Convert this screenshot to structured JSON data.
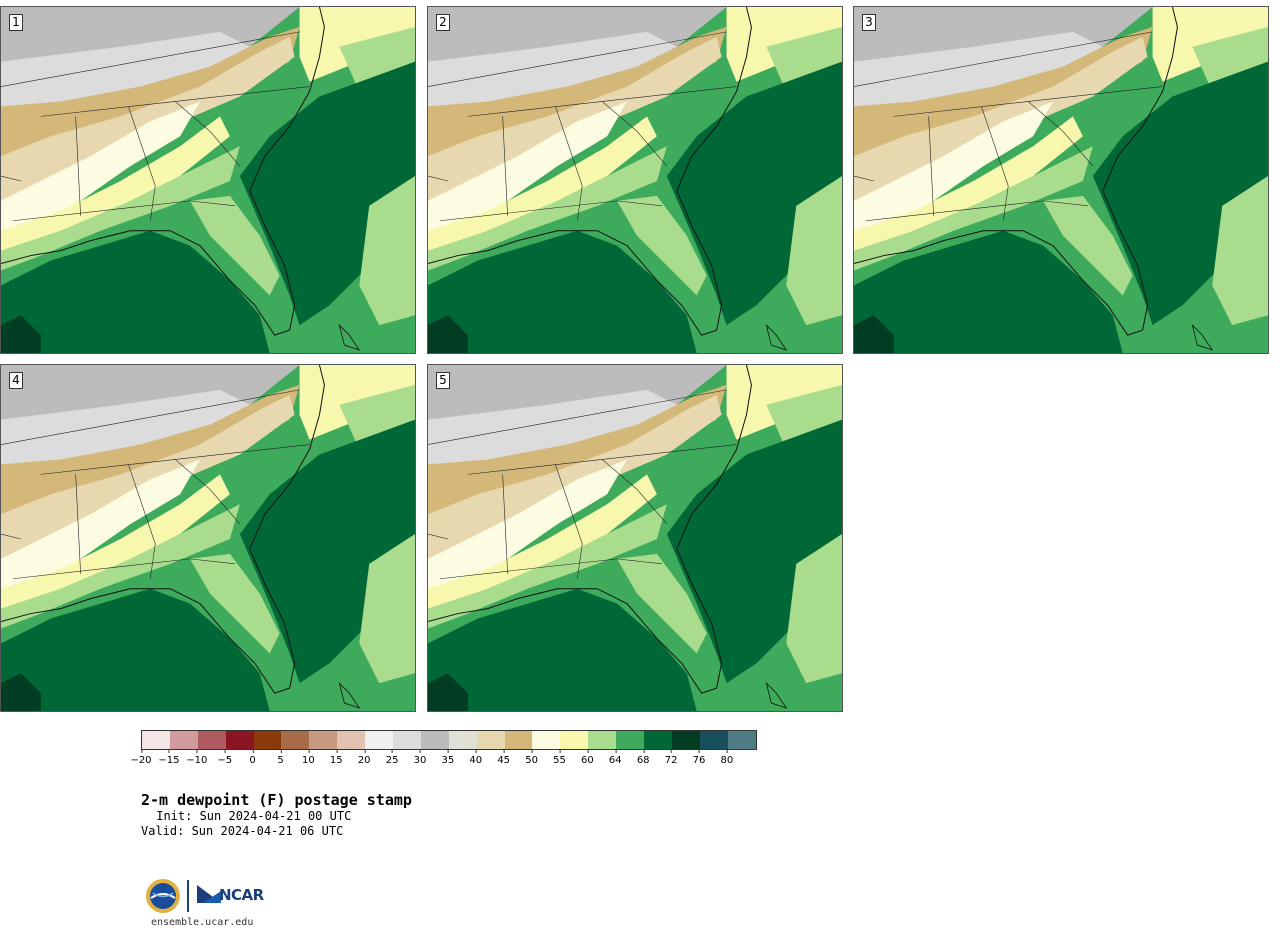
{
  "panels": [
    {
      "label": "1"
    },
    {
      "label": "2"
    },
    {
      "label": "3"
    },
    {
      "label": "4"
    },
    {
      "label": "5"
    }
  ],
  "colorbar": {
    "colors": [
      "#f4e6e6",
      "#d19a9e",
      "#ae5a5f",
      "#8b1520",
      "#8a3a0a",
      "#a86b48",
      "#c69a80",
      "#e2c2b2",
      "#f0f0ef",
      "#dcdcdc",
      "#bcbcbc",
      "#e0e0d6",
      "#e7d8b0",
      "#d4b87a",
      "#fcfce2",
      "#f7f7ad",
      "#a9dd8d",
      "#3eaa5c",
      "#006837",
      "#003d22",
      "#184f5c",
      "#4f7b82"
    ],
    "ticks": [
      "−20",
      "−15",
      "−10",
      "−5",
      "0",
      "5",
      "10",
      "15",
      "20",
      "25",
      "30",
      "35",
      "40",
      "45",
      "50",
      "55",
      "60",
      "64",
      "68",
      "72",
      "76",
      "80"
    ]
  },
  "title": "2-m dewpoint (F) postage stamp",
  "init": " Init: Sun 2024-04-21 00 UTC",
  "valid": "Valid: Sun 2024-04-21 06 UTC",
  "logo": {
    "org": "NCAR",
    "partner": "NSF"
  },
  "url": "ensemble.ucar.edu"
}
